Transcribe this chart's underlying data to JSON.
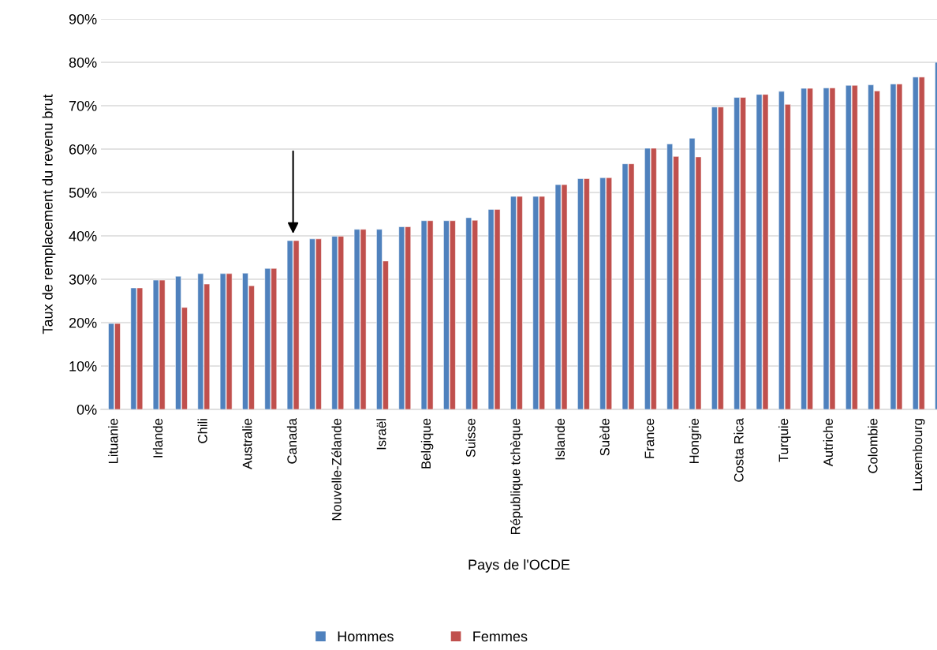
{
  "chart_data": {
    "type": "bar",
    "xlabel": "Pays de l'OCDE",
    "ylabel": "Taux de remplacement du revenu brut",
    "categories": [
      "Lituanie",
      null,
      "Irlande",
      null,
      "Chili",
      null,
      "Australie",
      null,
      "Canada",
      null,
      "Nouvelle-Zélande",
      null,
      "Israël",
      null,
      "Belgique",
      null,
      "Suisse",
      null,
      "République tchèque",
      null,
      "Islande",
      null,
      "Suède",
      null,
      "France",
      null,
      "Hongrie",
      null,
      "Costa Rica",
      null,
      "Turquie",
      null,
      "Autriche",
      null,
      "Colombie",
      null,
      "Luxembourg",
      null
    ],
    "series": [
      {
        "name": "Hommes",
        "color": "#4f81bd",
        "values": [
          19.8,
          28,
          29.8,
          30.7,
          31.3,
          31.3,
          31.4,
          32.5,
          38.9,
          39.3,
          39.9,
          41.5,
          41.5,
          42.1,
          43.5,
          43.5,
          44.2,
          46.1,
          49.1,
          49.1,
          51.8,
          53.2,
          53.4,
          56.6,
          60.2,
          61.2,
          62.5,
          69.7,
          71.9,
          72.6,
          73.3,
          74,
          74.1,
          74.7,
          74.8,
          75,
          76.6,
          80
        ]
      },
      {
        "name": "Femmes",
        "color": "#c0504d",
        "values": [
          19.8,
          28,
          29.8,
          23.5,
          28.9,
          31.3,
          28.5,
          32.5,
          38.9,
          39.3,
          39.9,
          41.5,
          34.2,
          42.1,
          43.5,
          43.5,
          43.6,
          46.1,
          49.1,
          49.1,
          51.8,
          53.2,
          53.4,
          56.6,
          60.2,
          58.3,
          58.2,
          69.7,
          71.9,
          72.6,
          70.3,
          74,
          74.1,
          74.7,
          73.4,
          75,
          76.6,
          null
        ]
      }
    ],
    "ylim": [
      0,
      90
    ],
    "yticks": [
      {
        "value": 0,
        "label": "0%"
      },
      {
        "value": 10,
        "label": "10%"
      },
      {
        "value": 20,
        "label": "20%"
      },
      {
        "value": 30,
        "label": "30%"
      },
      {
        "value": 40,
        "label": "40%"
      },
      {
        "value": 50,
        "label": "50%"
      },
      {
        "value": 60,
        "label": "60%"
      },
      {
        "value": 70,
        "label": "70%"
      },
      {
        "value": 80,
        "label": "80%"
      },
      {
        "value": 90,
        "label": "90%"
      }
    ],
    "grid": "y",
    "legend": "bottom"
  }
}
